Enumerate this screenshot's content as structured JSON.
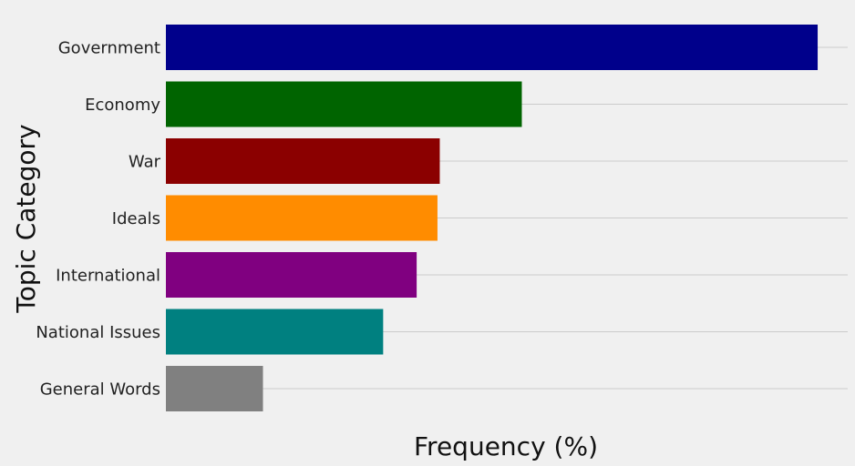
{
  "chart_data": {
    "type": "bar",
    "orientation": "horizontal",
    "title": "",
    "xlabel": "Frequency (%)",
    "ylabel": "Topic Category",
    "categories": [
      "Government",
      "Economy",
      "War",
      "Ideals",
      "International",
      "National Issues",
      "General Words"
    ],
    "values": [
      28.2,
      15.4,
      11.85,
      11.75,
      10.85,
      9.4,
      4.2
    ],
    "colors": [
      "#00008b",
      "#006400",
      "#8b0000",
      "#ff8c00",
      "#800080",
      "#008080",
      "#808080"
    ],
    "xlim": [
      0,
      29.5
    ],
    "x_ticks_visible": false,
    "grid": true,
    "legend": "none"
  }
}
